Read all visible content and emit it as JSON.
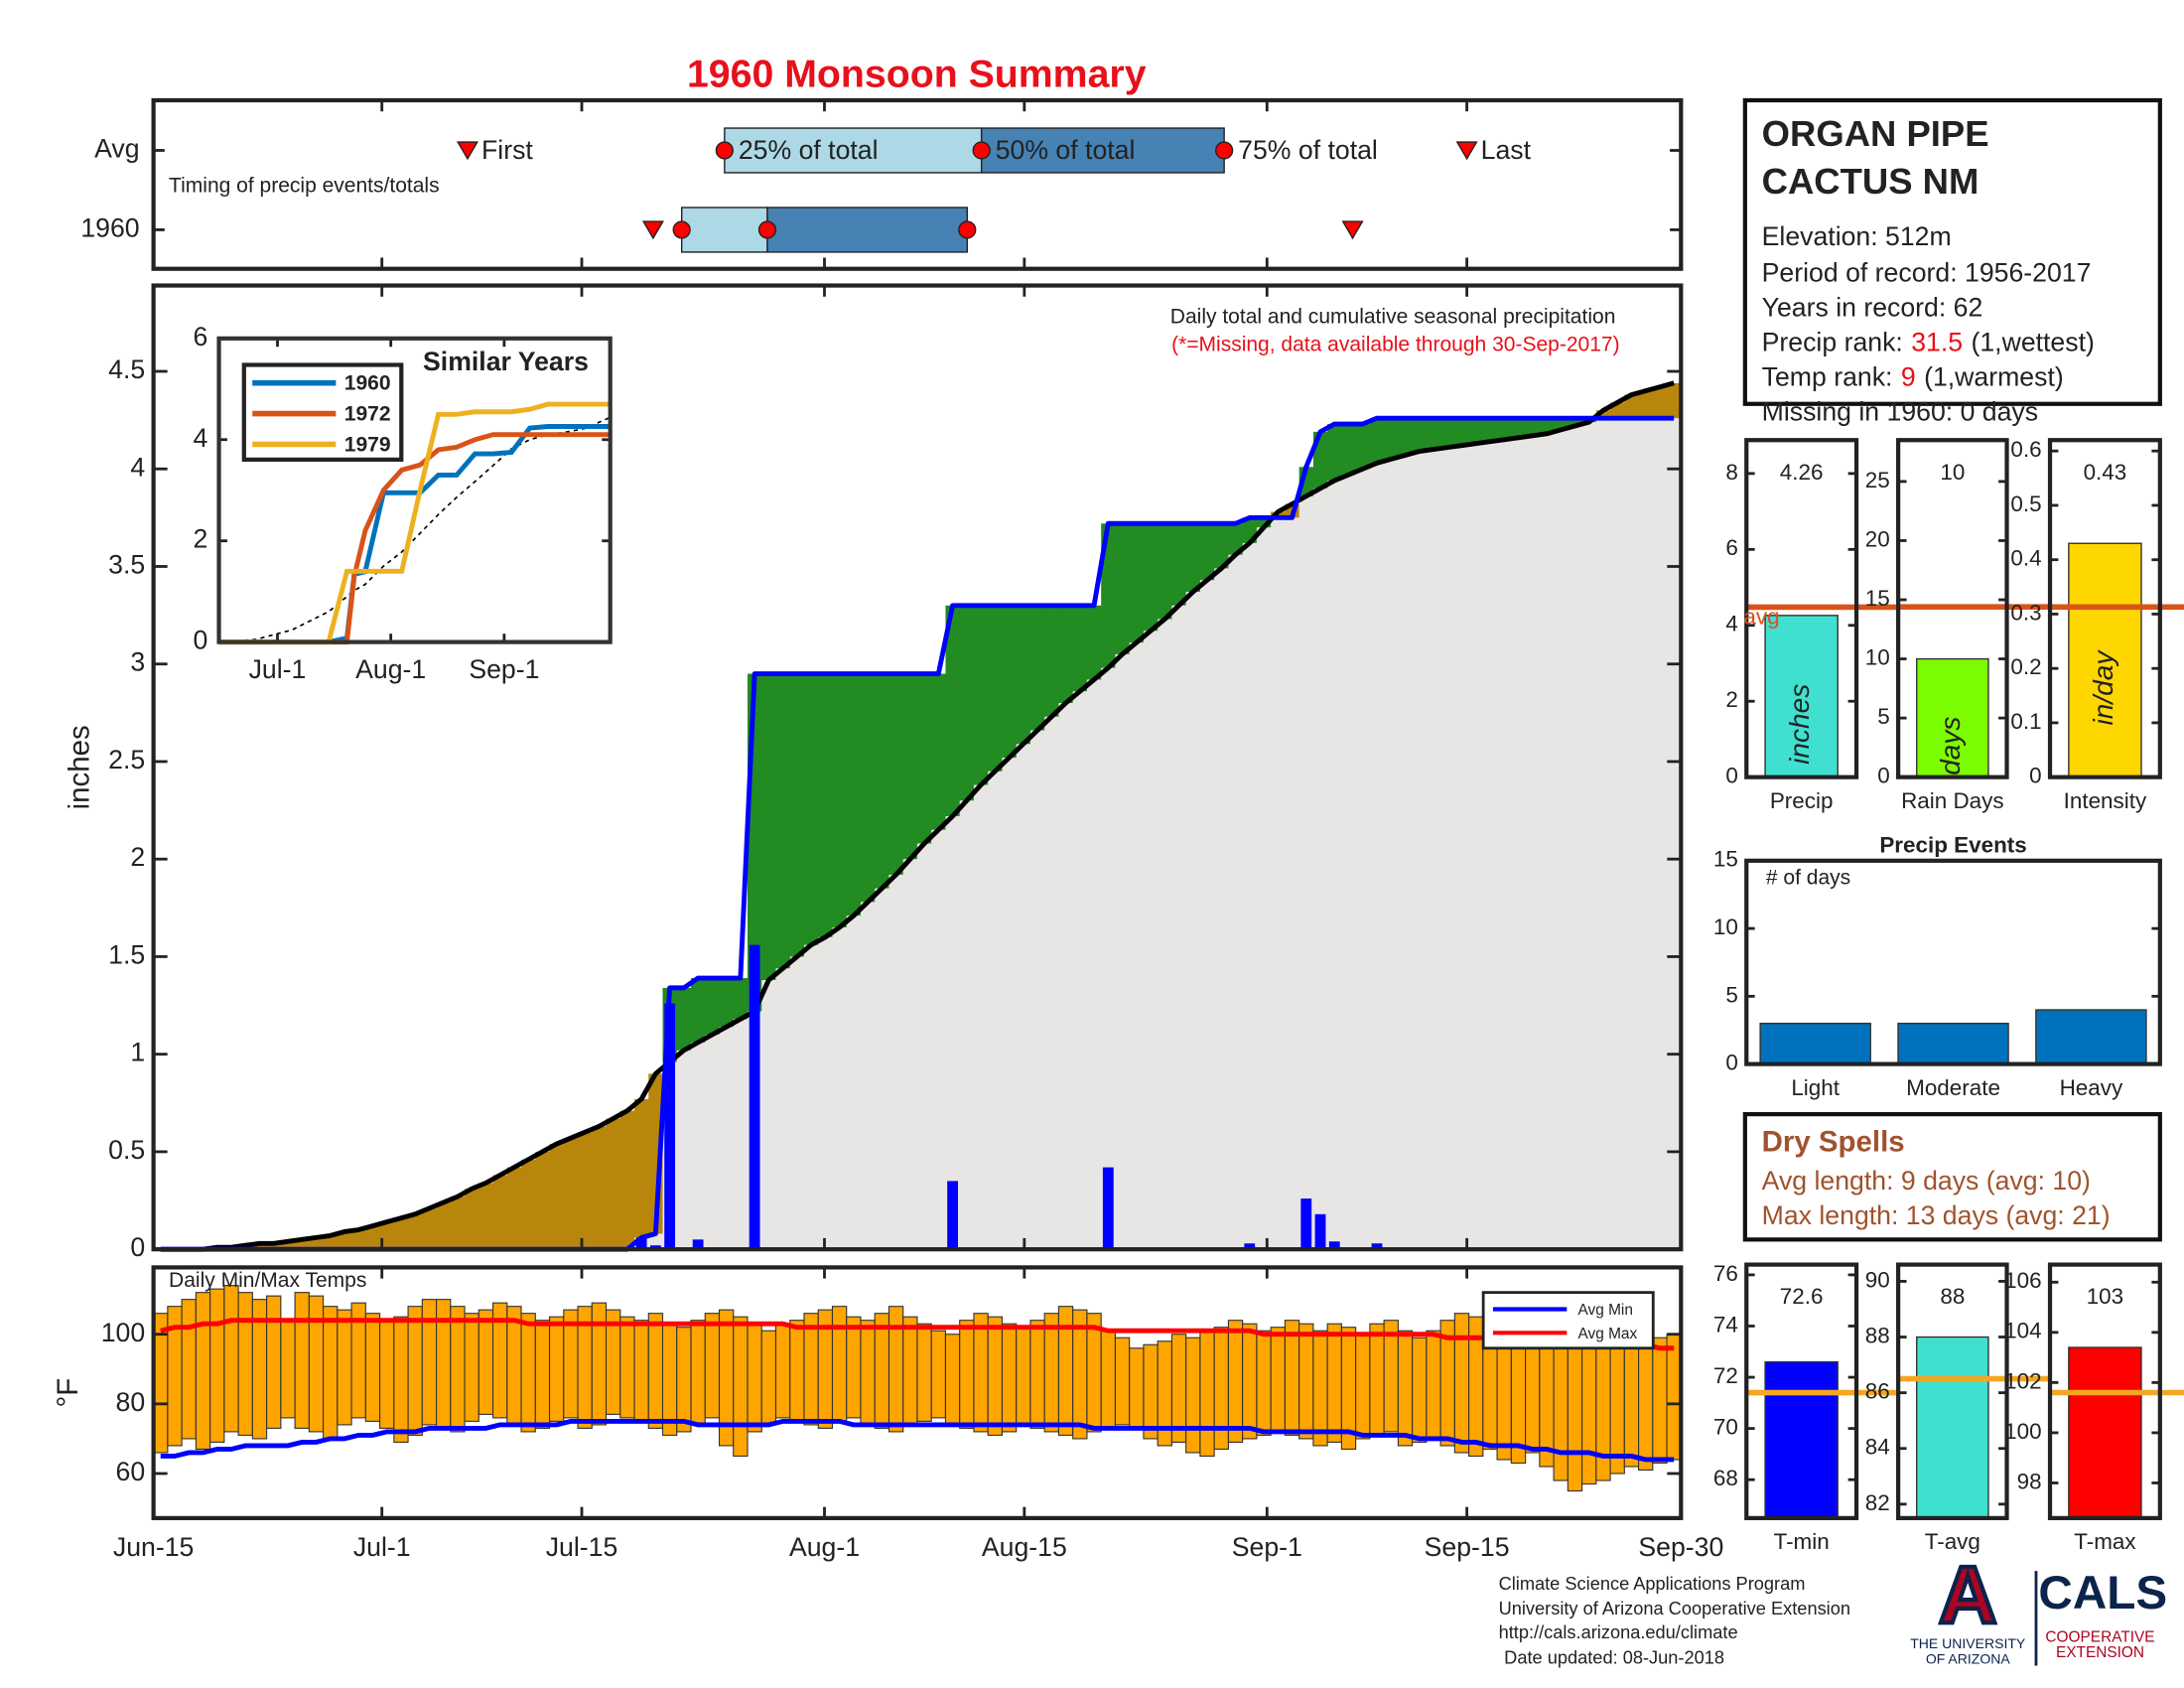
{
  "title": "1960 Monsoon Summary",
  "station": {
    "name_lines": [
      "ORGAN PIPE",
      "CACTUS NM"
    ],
    "elevation": "Elevation: 512m",
    "period": "Period of record: 1956-2017",
    "years": "Years in record: 62",
    "precip_rank": {
      "label": "Precip rank:",
      "value": "31.5",
      "note": "(1,wettest)"
    },
    "temp_rank": {
      "label": "Temp rank:",
      "value": "9",
      "note": "(1,warmest)"
    },
    "missing": "Missing in 1960: 0 days"
  },
  "dry_spells": {
    "title": "Dry Spells",
    "avg": "Avg length: 9 days (avg: 10)",
    "max": "Max length: 13 days (avg: 21)"
  },
  "footer": {
    "lines": [
      "Climate Science Applications Program",
      "University of Arizona Cooperative Extension",
      "http://cals.arizona.edu/climate",
      "Date updated: 08-Jun-2018"
    ],
    "logo_mark": "A",
    "university": [
      "THE UNIVERSITY",
      "OF ARIZONA"
    ],
    "cals": "CALS",
    "extension": [
      "COOPERATIVE",
      "EXTENSION"
    ]
  },
  "chart_data": [
    {
      "type": "timing",
      "note": "Timing of precip events/totals",
      "marker_labels": [
        "First",
        "25% of total",
        "50% of total",
        "75% of total",
        "Last"
      ],
      "xlim": [
        0,
        107
      ],
      "series": [
        {
          "name": "Avg",
          "values": [
            22,
            40,
            58,
            75,
            92
          ]
        },
        {
          "name": "1960",
          "values": [
            35,
            37,
            43,
            57,
            84
          ]
        }
      ],
      "marker_color": "#ff0000",
      "box_colors": [
        "#add8e6",
        "#4682b4"
      ]
    },
    {
      "type": "precip",
      "annotation": "Daily total and cumulative seasonal precipitation",
      "note": "(*=Missing, data available through 30-Sep-2017)",
      "ylabel": "inches",
      "xlim": [
        0,
        107
      ],
      "ylim": [
        0,
        4.94
      ],
      "yticks": [
        0,
        0.5,
        1,
        1.5,
        2,
        2.5,
        3,
        3.5,
        4,
        4.5
      ],
      "daily": {
        "color": "#0000ff",
        "values": [
          0,
          0,
          0,
          0,
          0,
          0,
          0,
          0,
          0,
          0,
          0,
          0,
          0,
          0,
          0,
          0,
          0,
          0,
          0,
          0,
          0,
          0,
          0,
          0,
          0,
          0,
          0,
          0,
          0,
          0,
          0,
          0,
          0,
          0,
          0.06,
          0.02,
          1.26,
          0,
          0.05,
          0,
          0,
          0,
          1.56,
          0,
          0,
          0,
          0,
          0,
          0,
          0,
          0,
          0,
          0,
          0,
          0,
          0,
          0.35,
          0,
          0,
          0,
          0,
          0,
          0,
          0,
          0,
          0,
          0,
          0.42,
          0,
          0,
          0,
          0,
          0,
          0,
          0,
          0,
          0,
          0.03,
          0,
          0,
          0,
          0.26,
          0.18,
          0.04,
          0,
          0,
          0.03,
          0,
          0,
          0,
          0,
          0,
          0,
          0,
          0,
          0,
          0,
          0,
          0,
          0,
          0,
          0,
          0,
          0,
          0,
          0,
          0,
          0
        ]
      },
      "cumulative": {
        "color": "#0000ff",
        "values": [
          0,
          0,
          0,
          0,
          0,
          0,
          0,
          0,
          0,
          0,
          0,
          0,
          0,
          0,
          0,
          0,
          0,
          0,
          0,
          0,
          0,
          0,
          0,
          0,
          0,
          0,
          0,
          0,
          0,
          0,
          0,
          0,
          0,
          0,
          0.06,
          0.08,
          1.34,
          1.34,
          1.39,
          1.39,
          1.39,
          1.39,
          2.95,
          2.95,
          2.95,
          2.95,
          2.95,
          2.95,
          2.95,
          2.95,
          2.95,
          2.95,
          2.95,
          2.95,
          2.95,
          2.95,
          3.3,
          3.3,
          3.3,
          3.3,
          3.3,
          3.3,
          3.3,
          3.3,
          3.3,
          3.3,
          3.3,
          3.72,
          3.72,
          3.72,
          3.72,
          3.72,
          3.72,
          3.72,
          3.72,
          3.72,
          3.72,
          3.75,
          3.75,
          3.75,
          3.75,
          4.01,
          4.19,
          4.23,
          4.23,
          4.23,
          4.26,
          4.26,
          4.26,
          4.26,
          4.26,
          4.26,
          4.26,
          4.26,
          4.26,
          4.26,
          4.26,
          4.26,
          4.26,
          4.26,
          4.26,
          4.26,
          4.26,
          4.26,
          4.26,
          4.26,
          4.26,
          4.26
        ]
      },
      "avg_cumulative": {
        "color": "#000000",
        "values": [
          0,
          0,
          0,
          0,
          0.01,
          0.01,
          0.02,
          0.03,
          0.03,
          0.04,
          0.05,
          0.06,
          0.07,
          0.09,
          0.1,
          0.12,
          0.14,
          0.16,
          0.18,
          0.21,
          0.24,
          0.27,
          0.31,
          0.34,
          0.38,
          0.42,
          0.46,
          0.5,
          0.54,
          0.57,
          0.6,
          0.63,
          0.67,
          0.71,
          0.77,
          0.9,
          0.96,
          1.02,
          1.06,
          1.1,
          1.14,
          1.18,
          1.22,
          1.38,
          1.44,
          1.5,
          1.56,
          1.6,
          1.65,
          1.71,
          1.78,
          1.85,
          1.92,
          2.0,
          2.08,
          2.15,
          2.22,
          2.3,
          2.38,
          2.45,
          2.52,
          2.59,
          2.66,
          2.73,
          2.8,
          2.86,
          2.92,
          2.98,
          3.05,
          3.11,
          3.17,
          3.23,
          3.3,
          3.37,
          3.43,
          3.49,
          3.56,
          3.62,
          3.7,
          3.78,
          3.82,
          3.86,
          3.9,
          3.94,
          3.97,
          4.0,
          4.03,
          4.05,
          4.07,
          4.09,
          4.1,
          4.11,
          4.12,
          4.13,
          4.14,
          4.15,
          4.16,
          4.17,
          4.18,
          4.2,
          4.22,
          4.24,
          4.3,
          4.34,
          4.38,
          4.4,
          4.42,
          4.44
        ]
      },
      "above_color": "#228b22",
      "below_color": "#b8860b",
      "base_color": "#e8e6e4"
    },
    {
      "type": "line",
      "title": "Similar Years",
      "x": [
        0,
        10,
        20,
        30,
        35,
        37,
        40,
        45,
        50,
        55,
        60,
        65,
        70,
        75,
        80,
        85,
        90,
        95,
        100,
        107
      ],
      "xlim": [
        0,
        107
      ],
      "xticks": [
        {
          "value": 16,
          "label": "Jul-1"
        },
        {
          "value": 47,
          "label": "Aug-1"
        },
        {
          "value": 78,
          "label": "Sep-1"
        }
      ],
      "ylim": [
        0,
        6
      ],
      "yticks": [
        0,
        2,
        4,
        6
      ],
      "series": [
        {
          "name": "1960",
          "color": "#0072bd",
          "values": [
            0,
            0,
            0,
            0,
            0.08,
            1.34,
            1.39,
            2.95,
            2.95,
            2.95,
            3.3,
            3.3,
            3.72,
            3.72,
            3.75,
            4.23,
            4.26,
            4.26,
            4.26,
            4.26
          ]
        },
        {
          "name": "1972",
          "color": "#d95319",
          "values": [
            0,
            0,
            0,
            0,
            0,
            1.3,
            2.2,
            3.0,
            3.4,
            3.5,
            3.8,
            3.85,
            4.0,
            4.1,
            4.1,
            4.1,
            4.1,
            4.1,
            4.1,
            4.1
          ]
        },
        {
          "name": "1979",
          "color": "#edb120",
          "values": [
            0,
            0,
            0,
            0,
            1.4,
            1.4,
            1.4,
            1.4,
            1.4,
            3.0,
            4.5,
            4.5,
            4.55,
            4.55,
            4.55,
            4.6,
            4.7,
            4.7,
            4.7,
            4.7
          ]
        }
      ],
      "avg_values": [
        0,
        0.05,
        0.24,
        0.6,
        0.9,
        1.02,
        1.14,
        1.5,
        1.78,
        2.15,
        2.52,
        2.86,
        3.17,
        3.49,
        3.82,
        4.0,
        4.1,
        4.15,
        4.22,
        4.44
      ]
    },
    {
      "type": "temps",
      "title": "Daily Min/Max Temps",
      "ylabel": "°F",
      "xlim": [
        0,
        107
      ],
      "xticks": [
        {
          "value": 0,
          "label": "Jun-15"
        },
        {
          "value": 16,
          "label": "Jul-1"
        },
        {
          "value": 30,
          "label": "Jul-15"
        },
        {
          "value": 47,
          "label": "Aug-1"
        },
        {
          "value": 61,
          "label": "Aug-15"
        },
        {
          "value": 78,
          "label": "Sep-1"
        },
        {
          "value": 92,
          "label": "Sep-15"
        },
        {
          "value": 107,
          "label": "Sep-30"
        }
      ],
      "ylim": [
        47.2,
        119.2
      ],
      "yticks": [
        60,
        80,
        100
      ],
      "bar_color": "#ffa500",
      "min": [
        66,
        68,
        70,
        67,
        69,
        72,
        71,
        70,
        73,
        76,
        73,
        72,
        70,
        74,
        76,
        75,
        73,
        69,
        71,
        74,
        73,
        72,
        75,
        77,
        76,
        74,
        72,
        73,
        75,
        76,
        73,
        74,
        77,
        76,
        75,
        73,
        71,
        72,
        74,
        76,
        68,
        65,
        72,
        74,
        76,
        75,
        74,
        73,
        75,
        76,
        74,
        73,
        72,
        74,
        75,
        76,
        74,
        73,
        72,
        71,
        72,
        74,
        73,
        72,
        71,
        70,
        72,
        73,
        74,
        73,
        70,
        68,
        69,
        66,
        65,
        67,
        69,
        70,
        71,
        72,
        71,
        70,
        68,
        69,
        67,
        70,
        71,
        72,
        68,
        69,
        70,
        68,
        66,
        65,
        67,
        64,
        63,
        66,
        62,
        58,
        55,
        57,
        58,
        60,
        62,
        61,
        63,
        64
      ],
      "max": [
        106,
        108,
        110,
        112,
        113,
        114,
        112,
        110,
        111,
        104,
        112,
        111,
        108,
        107,
        109,
        106,
        104,
        105,
        108,
        110,
        110,
        108,
        106,
        107,
        109,
        108,
        106,
        104,
        105,
        107,
        108,
        109,
        107,
        105,
        104,
        106,
        103,
        102,
        104,
        106,
        107,
        105,
        103,
        101,
        103,
        104,
        106,
        107,
        108,
        105,
        104,
        106,
        108,
        105,
        103,
        101,
        100,
        104,
        106,
        105,
        103,
        102,
        104,
        106,
        108,
        107,
        106,
        101,
        99,
        96,
        97,
        98,
        100,
        99,
        101,
        102,
        104,
        103,
        101,
        102,
        104,
        103,
        101,
        103,
        102,
        100,
        103,
        104,
        101,
        99,
        101,
        104,
        106,
        105,
        102,
        103,
        101,
        100,
        98,
        99,
        100,
        98,
        99,
        100,
        98,
        97,
        99,
        100
      ],
      "series": [
        {
          "name": "Avg Min",
          "color": "#0000ff",
          "values": [
            65,
            65,
            66,
            66,
            67,
            67,
            68,
            68,
            68,
            68,
            69,
            69,
            70,
            70,
            71,
            71,
            72,
            72,
            72,
            73,
            73,
            73,
            73,
            73,
            74,
            74,
            74,
            74,
            74,
            75,
            75,
            75,
            75,
            75,
            75,
            75,
            75,
            75,
            74,
            74,
            74,
            74,
            74,
            74,
            75,
            75,
            75,
            75,
            75,
            74,
            74,
            74,
            74,
            74,
            74,
            74,
            74,
            74,
            74,
            74,
            74,
            74,
            74,
            74,
            74,
            74,
            73,
            73,
            73,
            73,
            73,
            73,
            73,
            73,
            73,
            73,
            73,
            73,
            72,
            72,
            72,
            72,
            72,
            72,
            72,
            71,
            71,
            71,
            71,
            70,
            70,
            70,
            69,
            69,
            68,
            68,
            68,
            67,
            67,
            66,
            66,
            66,
            65,
            65,
            65,
            64,
            64,
            64
          ]
        },
        {
          "name": "Avg Max",
          "color": "#ff0000",
          "values": [
            101,
            102,
            102,
            103,
            103,
            104,
            104,
            104,
            104,
            104,
            104,
            104,
            104,
            104,
            104,
            104,
            104,
            104,
            104,
            104,
            104,
            104,
            104,
            104,
            104,
            104,
            103,
            103,
            103,
            103,
            103,
            103,
            103,
            103,
            103,
            103,
            103,
            103,
            103,
            103,
            103,
            103,
            103,
            103,
            103,
            102,
            102,
            102,
            102,
            102,
            102,
            102,
            102,
            102,
            102,
            102,
            102,
            102,
            102,
            102,
            102,
            102,
            102,
            102,
            102,
            102,
            102,
            101,
            101,
            101,
            101,
            101,
            101,
            101,
            101,
            101,
            101,
            101,
            100,
            100,
            100,
            100,
            100,
            100,
            100,
            100,
            100,
            100,
            100,
            100,
            100,
            99,
            99,
            99,
            99,
            99,
            99,
            99,
            98,
            98,
            98,
            98,
            98,
            97,
            97,
            97,
            96,
            96
          ]
        }
      ]
    },
    {
      "type": "gauge",
      "category": "Precip",
      "value": 4.26,
      "unit": "inches",
      "avg": 4.48,
      "avg_label": "avg",
      "avg_color": "#d95319",
      "color": "#40e0d0",
      "ylim": [
        0,
        8.88
      ],
      "yticks": [
        0,
        2,
        4,
        6,
        8
      ]
    },
    {
      "type": "gauge",
      "category": "Rain Days",
      "value": 10,
      "unit": "days",
      "avg": 14.4,
      "avg_color": "#d95319",
      "color": "#7cfc00",
      "ylim": [
        0,
        28.5
      ],
      "yticks": [
        0,
        5,
        10,
        15,
        20,
        25
      ]
    },
    {
      "type": "gauge",
      "category": "Intensity",
      "value": 0.43,
      "unit": "in/day",
      "avg": 0.313,
      "avg_color": "#d95319",
      "color": "#ffd700",
      "ylim": [
        0,
        0.62
      ],
      "yticks": [
        0,
        0.1,
        0.2,
        0.3,
        0.4,
        0.5,
        0.6
      ]
    },
    {
      "type": "bar",
      "title": "Precip Events",
      "annotation": "# of days",
      "categories": [
        "Light",
        "Moderate",
        "Heavy"
      ],
      "values": [
        3,
        3,
        4
      ],
      "color": "#0072bd",
      "ylim": [
        0,
        15
      ],
      "yticks": [
        0,
        5,
        10,
        15
      ]
    },
    {
      "type": "gauge",
      "category": "T-min",
      "value": 72.6,
      "avg": 71.4,
      "avg_color": "#f5a623",
      "color": "#0000ff",
      "ylim": [
        66.5,
        76.4
      ],
      "yticks": [
        68,
        70,
        72,
        74,
        76
      ]
    },
    {
      "type": "gauge",
      "category": "T-avg",
      "value": 88,
      "avg": 86.5,
      "avg_color": "#f5a623",
      "color": "#40e0d0",
      "ylim": [
        81.5,
        90.6
      ],
      "yticks": [
        82,
        84,
        86,
        88,
        90
      ]
    },
    {
      "type": "gauge",
      "category": "T-max",
      "value": 103.4,
      "value_label": "103",
      "avg": 101.6,
      "avg_color": "#f5a623",
      "color": "#ff0000",
      "ylim": [
        96.6,
        106.7
      ],
      "yticks": [
        98,
        100,
        102,
        104,
        106
      ]
    }
  ]
}
